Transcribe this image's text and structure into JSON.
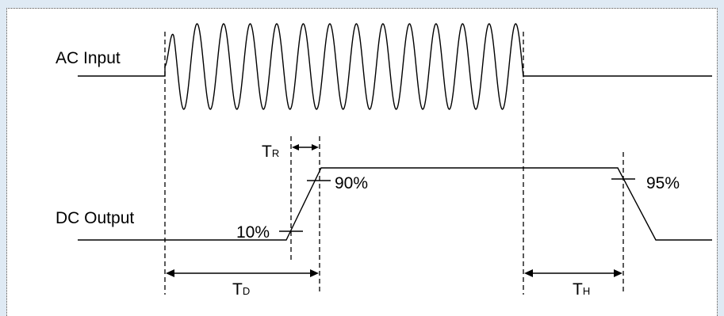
{
  "diagram": {
    "signals": {
      "ac_input_label": "AC Input",
      "dc_output_label": "DC Output"
    },
    "annotations": {
      "rise_time": {
        "main": "T",
        "sub": "R"
      },
      "delay_time": {
        "main": "T",
        "sub": "D"
      },
      "hold_time": {
        "main": "T",
        "sub": "H"
      },
      "low_threshold": "10%",
      "high_threshold": "90%",
      "drop_threshold": "95%"
    },
    "colors": {
      "page_background": "#dfeaf4",
      "panel_background": "#ffffff",
      "ink": "#000000"
    }
  }
}
